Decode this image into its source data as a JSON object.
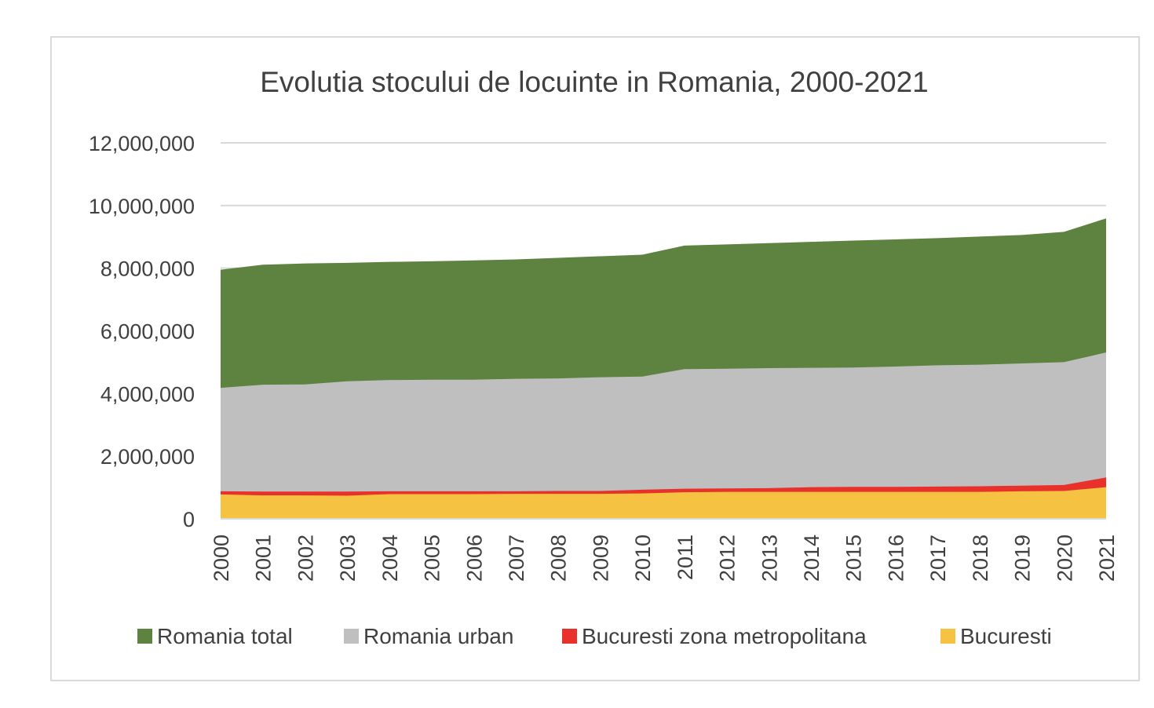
{
  "chart_data": {
    "type": "area",
    "title": "Evolutia stocului de locuinte in Romania, 2000-2021",
    "xlabel": "",
    "ylabel": "",
    "ylim": [
      0,
      12000000
    ],
    "yticks": [
      0,
      2000000,
      4000000,
      6000000,
      8000000,
      10000000,
      12000000
    ],
    "ytick_labels": [
      "0",
      "2,000,000",
      "4,000,000",
      "6,000,000",
      "8,000,000",
      "10,000,000",
      "12,000,000"
    ],
    "categories": [
      "2000",
      "2001",
      "2002",
      "2003",
      "2004",
      "2005",
      "2006",
      "2007",
      "2008",
      "2009",
      "2010",
      "2011",
      "2012",
      "2013",
      "2014",
      "2015",
      "2016",
      "2017",
      "2018",
      "2019",
      "2020",
      "2021"
    ],
    "grid": true,
    "legend_position": "bottom",
    "series": [
      {
        "name": "Romania total",
        "color": "#5e823f",
        "values": [
          7950000,
          8110000,
          8150000,
          8170000,
          8200000,
          8220000,
          8250000,
          8280000,
          8330000,
          8380000,
          8430000,
          8720000,
          8760000,
          8800000,
          8840000,
          8880000,
          8920000,
          8960000,
          9010000,
          9060000,
          9160000,
          9590000
        ]
      },
      {
        "name": "Romania urban",
        "color": "#bfbfbf",
        "values": [
          4180000,
          4280000,
          4290000,
          4390000,
          4430000,
          4440000,
          4440000,
          4470000,
          4480000,
          4520000,
          4540000,
          4780000,
          4790000,
          4810000,
          4820000,
          4830000,
          4860000,
          4900000,
          4920000,
          4960000,
          5000000,
          5310000
        ]
      },
      {
        "name": "Bucuresti zona metropolitana",
        "color": "#e8312a",
        "values": [
          880000,
          870000,
          870000,
          870000,
          880000,
          880000,
          880000,
          880000,
          890000,
          890000,
          930000,
          960000,
          970000,
          980000,
          1010000,
          1020000,
          1020000,
          1030000,
          1040000,
          1060000,
          1080000,
          1320000
        ]
      },
      {
        "name": "Bucuresti",
        "color": "#f5c242",
        "values": [
          780000,
          750000,
          750000,
          740000,
          790000,
          790000,
          790000,
          800000,
          800000,
          800000,
          810000,
          850000,
          860000,
          860000,
          860000,
          860000,
          860000,
          860000,
          860000,
          880000,
          890000,
          1010000
        ]
      }
    ]
  }
}
